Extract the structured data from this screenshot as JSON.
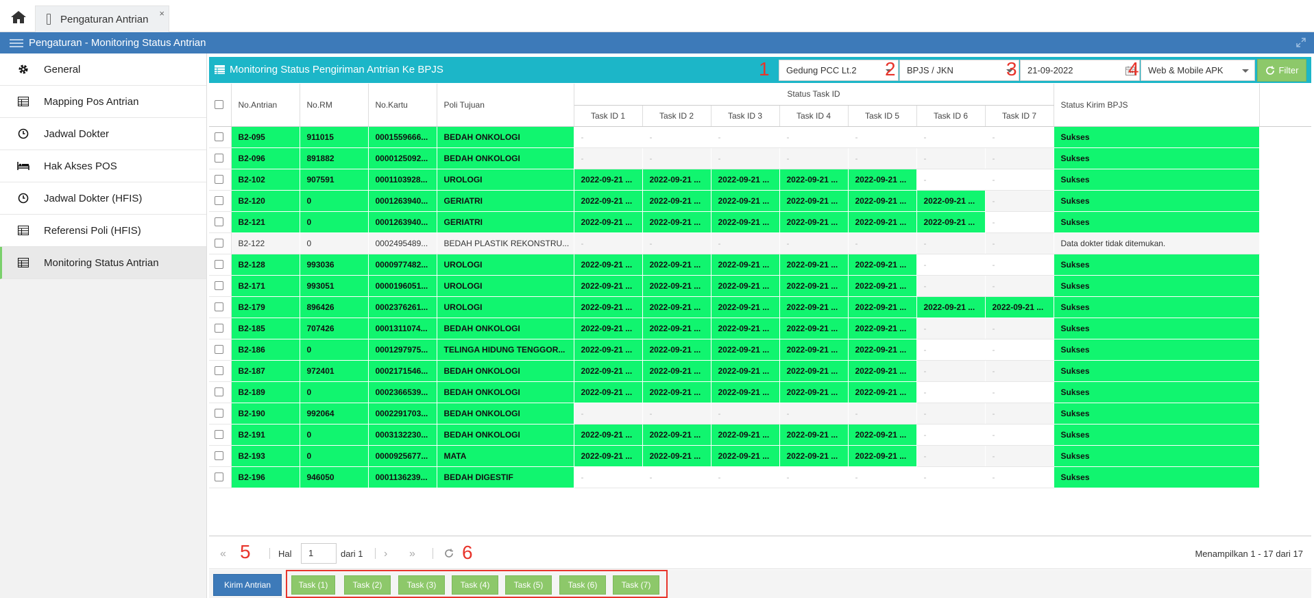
{
  "tab": {
    "title": "Pengaturan Antrian",
    "close": "×"
  },
  "header": {
    "title": "Pengaturan - Monitoring Status Antrian"
  },
  "sidebar": {
    "items": [
      {
        "label": "General",
        "icon": "gear-icon"
      },
      {
        "label": "Mapping Pos Antrian",
        "icon": "table-icon"
      },
      {
        "label": "Jadwal Dokter",
        "icon": "clock-icon"
      },
      {
        "label": "Hak Akses POS",
        "icon": "bed-icon"
      },
      {
        "label": "Jadwal Dokter (HFIS)",
        "icon": "clock-icon"
      },
      {
        "label": "Referensi Poli (HFIS)",
        "icon": "table-icon"
      },
      {
        "label": "Monitoring Status Antrian",
        "icon": "table-icon"
      }
    ],
    "active_index": 6
  },
  "panel": {
    "title": "Monitoring Status Pengiriman Antrian Ke BPJS",
    "filters": {
      "gedung": "Gedung PCC Lt.2",
      "penjamin": "BPJS / JKN",
      "tanggal": "21-09-2022",
      "sumber": "Web & Mobile APK"
    },
    "filter_label": "Filter",
    "annotations": [
      "1",
      "2",
      "3",
      "4",
      "5",
      "6"
    ]
  },
  "table": {
    "headers": {
      "no_antrian": "No.Antrian",
      "no_rm": "No.RM",
      "no_kartu": "No.Kartu",
      "poli": "Poli Tujuan",
      "status_task": "Status Task ID",
      "tasks": [
        "Task ID 1",
        "Task ID 2",
        "Task ID 3",
        "Task ID 4",
        "Task ID 5",
        "Task ID 6",
        "Task ID 7"
      ],
      "status_kirim": "Status Kirim BPJS"
    },
    "rows": [
      {
        "antrian": "B2-095",
        "rm": "911015",
        "kartu": "0001559666...",
        "poli": "BEDAH ONKOLOGI",
        "tasks": [
          "-",
          "-",
          "-",
          "-",
          "-",
          "-",
          "-"
        ],
        "status": "Sukses",
        "ok": true
      },
      {
        "antrian": "B2-096",
        "rm": "891882",
        "kartu": "0000125092...",
        "poli": "BEDAH ONKOLOGI",
        "tasks": [
          "-",
          "-",
          "-",
          "-",
          "-",
          "-",
          "-"
        ],
        "status": "Sukses",
        "ok": true
      },
      {
        "antrian": "B2-102",
        "rm": "907591",
        "kartu": "0001103928...",
        "poli": "UROLOGI",
        "tasks": [
          "2022-09-21 ...",
          "2022-09-21 ...",
          "2022-09-21 ...",
          "2022-09-21 ...",
          "2022-09-21 ...",
          "-",
          "-"
        ],
        "status": "Sukses",
        "ok": true
      },
      {
        "antrian": "B2-120",
        "rm": "0",
        "kartu": "0001263940...",
        "poli": "GERIATRI",
        "tasks": [
          "2022-09-21 ...",
          "2022-09-21 ...",
          "2022-09-21 ...",
          "2022-09-21 ...",
          "2022-09-21 ...",
          "2022-09-21 ...",
          "-"
        ],
        "status": "Sukses",
        "ok": true
      },
      {
        "antrian": "B2-121",
        "rm": "0",
        "kartu": "0001263940...",
        "poli": "GERIATRI",
        "tasks": [
          "2022-09-21 ...",
          "2022-09-21 ...",
          "2022-09-21 ...",
          "2022-09-21 ...",
          "2022-09-21 ...",
          "2022-09-21 ...",
          "-"
        ],
        "status": "Sukses",
        "ok": true
      },
      {
        "antrian": "B2-122",
        "rm": "0",
        "kartu": "0002495489...",
        "poli": "BEDAH PLASTIK REKONSTRU...",
        "tasks": [
          "-",
          "-",
          "-",
          "-",
          "-",
          "-",
          "-"
        ],
        "status": "Data dokter tidak ditemukan.",
        "ok": false
      },
      {
        "antrian": "B2-128",
        "rm": "993036",
        "kartu": "0000977482...",
        "poli": "UROLOGI",
        "tasks": [
          "2022-09-21 ...",
          "2022-09-21 ...",
          "2022-09-21 ...",
          "2022-09-21 ...",
          "2022-09-21 ...",
          "-",
          "-"
        ],
        "status": "Sukses",
        "ok": true
      },
      {
        "antrian": "B2-171",
        "rm": "993051",
        "kartu": "0000196051...",
        "poli": "UROLOGI",
        "tasks": [
          "2022-09-21 ...",
          "2022-09-21 ...",
          "2022-09-21 ...",
          "2022-09-21 ...",
          "2022-09-21 ...",
          "-",
          "-"
        ],
        "status": "Sukses",
        "ok": true
      },
      {
        "antrian": "B2-179",
        "rm": "896426",
        "kartu": "0002376261...",
        "poli": "UROLOGI",
        "tasks": [
          "2022-09-21 ...",
          "2022-09-21 ...",
          "2022-09-21 ...",
          "2022-09-21 ...",
          "2022-09-21 ...",
          "2022-09-21 ...",
          "2022-09-21 ..."
        ],
        "status": "Sukses",
        "ok": true
      },
      {
        "antrian": "B2-185",
        "rm": "707426",
        "kartu": "0001311074...",
        "poli": "BEDAH ONKOLOGI",
        "tasks": [
          "2022-09-21 ...",
          "2022-09-21 ...",
          "2022-09-21 ...",
          "2022-09-21 ...",
          "2022-09-21 ...",
          "-",
          "-"
        ],
        "status": "Sukses",
        "ok": true
      },
      {
        "antrian": "B2-186",
        "rm": "0",
        "kartu": "0001297975...",
        "poli": "TELINGA HIDUNG TENGGOR...",
        "tasks": [
          "2022-09-21 ...",
          "2022-09-21 ...",
          "2022-09-21 ...",
          "2022-09-21 ...",
          "2022-09-21 ...",
          "-",
          "-"
        ],
        "status": "Sukses",
        "ok": true
      },
      {
        "antrian": "B2-187",
        "rm": "972401",
        "kartu": "0002171546...",
        "poli": "BEDAH ONKOLOGI",
        "tasks": [
          "2022-09-21 ...",
          "2022-09-21 ...",
          "2022-09-21 ...",
          "2022-09-21 ...",
          "2022-09-21 ...",
          "-",
          "-"
        ],
        "status": "Sukses",
        "ok": true
      },
      {
        "antrian": "B2-189",
        "rm": "0",
        "kartu": "0002366539...",
        "poli": "BEDAH ONKOLOGI",
        "tasks": [
          "2022-09-21 ...",
          "2022-09-21 ...",
          "2022-09-21 ...",
          "2022-09-21 ...",
          "2022-09-21 ...",
          "-",
          "-"
        ],
        "status": "Sukses",
        "ok": true
      },
      {
        "antrian": "B2-190",
        "rm": "992064",
        "kartu": "0002291703...",
        "poli": "BEDAH ONKOLOGI",
        "tasks": [
          "-",
          "-",
          "-",
          "-",
          "-",
          "-",
          "-"
        ],
        "status": "Sukses",
        "ok": true
      },
      {
        "antrian": "B2-191",
        "rm": "0",
        "kartu": "0003132230...",
        "poli": "BEDAH ONKOLOGI",
        "tasks": [
          "2022-09-21 ...",
          "2022-09-21 ...",
          "2022-09-21 ...",
          "2022-09-21 ...",
          "2022-09-21 ...",
          "-",
          "-"
        ],
        "status": "Sukses",
        "ok": true
      },
      {
        "antrian": "B2-193",
        "rm": "0",
        "kartu": "0000925677...",
        "poli": "MATA",
        "tasks": [
          "2022-09-21 ...",
          "2022-09-21 ...",
          "2022-09-21 ...",
          "2022-09-21 ...",
          "2022-09-21 ...",
          "-",
          "-"
        ],
        "status": "Sukses",
        "ok": true
      },
      {
        "antrian": "B2-196",
        "rm": "946050",
        "kartu": "0001136239...",
        "poli": "BEDAH DIGESTIF",
        "tasks": [
          "-",
          "-",
          "-",
          "-",
          "-",
          "-",
          "-"
        ],
        "status": "Sukses",
        "ok": true
      }
    ]
  },
  "pager": {
    "hal_label": "Hal",
    "page": "1",
    "of_label": "dari 1",
    "summary": "Menampilkan 1 - 17 dari 17"
  },
  "toolbar": {
    "send_label": "Kirim Antrian",
    "tasks": [
      "Task (1)",
      "Task (2)",
      "Task (3)",
      "Task (4)",
      "Task (5)",
      "Task (6)",
      "Task (7)"
    ]
  },
  "colors": {
    "success": "#11f56f",
    "header_blue": "#3d7ab9",
    "panel_teal": "#1cb6c8",
    "button_green": "#8dc86a",
    "annotation_red": "#e8342b"
  }
}
